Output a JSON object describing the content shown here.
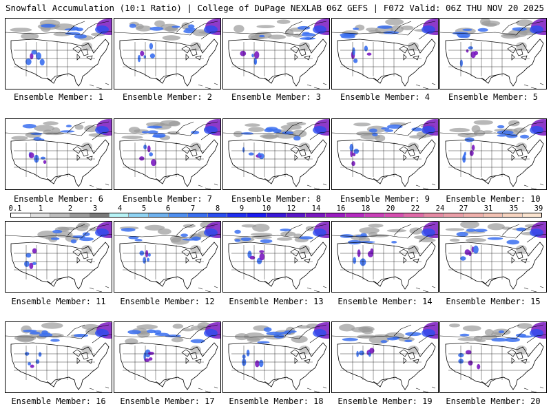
{
  "header": {
    "title": "Snowfall Accumulation (10:1 Ratio) | College of DuPage NEXLAB",
    "run_info": "06Z GEFS | F072 Valid: 06Z THU NOV 20 2025"
  },
  "members": [
    {
      "label": "Ensemble Member: 1"
    },
    {
      "label": "Ensemble Member: 2"
    },
    {
      "label": "Ensemble Member: 3"
    },
    {
      "label": "Ensemble Member: 4"
    },
    {
      "label": "Ensemble Member: 5"
    },
    {
      "label": "Ensemble Member: 6"
    },
    {
      "label": "Ensemble Member: 7"
    },
    {
      "label": "Ensemble Member: 8"
    },
    {
      "label": "Ensemble Member: 9"
    },
    {
      "label": "Ensemble Member: 10"
    },
    {
      "label": "Ensemble Member: 11"
    },
    {
      "label": "Ensemble Member: 12"
    },
    {
      "label": "Ensemble Member: 13"
    },
    {
      "label": "Ensemble Member: 14"
    },
    {
      "label": "Ensemble Member: 15"
    },
    {
      "label": "Ensemble Member: 16"
    },
    {
      "label": "Ensemble Member: 17"
    },
    {
      "label": "Ensemble Member: 18"
    },
    {
      "label": "Ensemble Member: 19"
    },
    {
      "label": "Ensemble Member: 20"
    }
  ],
  "colorbar": {
    "labels": [
      "0.1",
      "1",
      "2",
      "3",
      "4",
      "5",
      "6",
      "7",
      "8",
      "9",
      "10",
      "12",
      "14",
      "16",
      "18",
      "20",
      "22",
      "24",
      "27",
      "31",
      "35",
      "39"
    ],
    "colors": [
      "#ffffff",
      "#e0e0e0",
      "#bdbdbd",
      "#9a9a9a",
      "#7a7a7a",
      "#b7f3f6",
      "#8fd3f3",
      "#6fb2ef",
      "#4f8ff0",
      "#3a6ff0",
      "#2a4ef0",
      "#1f2ef0",
      "#1a1af0",
      "#3a18d8",
      "#5a16c8",
      "#7a18c0",
      "#9a1cc0",
      "#b52ac0",
      "#c940b8",
      "#d64fb0",
      "#e06aa8",
      "#e58aa4",
      "#ea9ea8",
      "#efb0ac",
      "#f3c2b4",
      "#f7d4c0",
      "#fbe4d0"
    ]
  }
}
